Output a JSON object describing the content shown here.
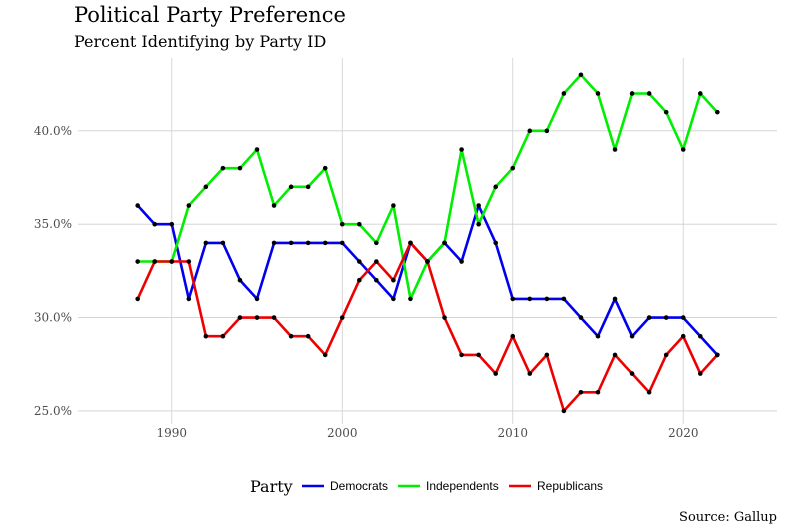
{
  "chart_data": {
    "type": "line",
    "title": "Political Party Preference",
    "subtitle": "Percent Identifying by Party ID",
    "caption": "Source: Gallup",
    "legend_title": "Party",
    "legend_position": "bottom",
    "grid": true,
    "x_ticks": [
      "1990",
      "2000",
      "2010",
      "2020"
    ],
    "y_ticks": [
      "25.0%",
      "30.0%",
      "35.0%",
      "40.0%"
    ],
    "xlim": [
      1984.5,
      2025.5
    ],
    "ylim": [
      24.3,
      43.9
    ],
    "x": [
      1988,
      1989,
      1990,
      1991,
      1992,
      1993,
      1994,
      1995,
      1996,
      1997,
      1998,
      1999,
      2000,
      2001,
      2002,
      2003,
      2004,
      2005,
      2006,
      2007,
      2008,
      2009,
      2010,
      2011,
      2012,
      2013,
      2014,
      2015,
      2016,
      2017,
      2018,
      2019,
      2020,
      2021,
      2022
    ],
    "series": [
      {
        "name": "Democrats",
        "color": "#0000ee",
        "values": [
          36,
          35,
          35,
          31,
          34,
          34,
          32,
          31,
          34,
          34,
          34,
          34,
          34,
          33,
          32,
          31,
          34,
          33,
          34,
          33,
          36,
          34,
          31,
          31,
          31,
          31,
          30,
          29,
          31,
          29,
          30,
          30,
          30,
          29,
          28
        ]
      },
      {
        "name": "Independents",
        "color": "#00ee00",
        "values": [
          33,
          33,
          33,
          36,
          37,
          38,
          38,
          39,
          36,
          37,
          37,
          38,
          35,
          35,
          34,
          36,
          31,
          33,
          34,
          39,
          35,
          37,
          38,
          40,
          40,
          42,
          43,
          42,
          39,
          42,
          42,
          41,
          39,
          42,
          41
        ]
      },
      {
        "name": "Republicans",
        "color": "#ee0000",
        "values": [
          31,
          33,
          33,
          33,
          29,
          29,
          30,
          30,
          30,
          29,
          29,
          28,
          30,
          32,
          33,
          32,
          34,
          33,
          30,
          28,
          28,
          27,
          29,
          27,
          28,
          25,
          26,
          26,
          28,
          27,
          26,
          28,
          29,
          27,
          28
        ]
      }
    ]
  }
}
